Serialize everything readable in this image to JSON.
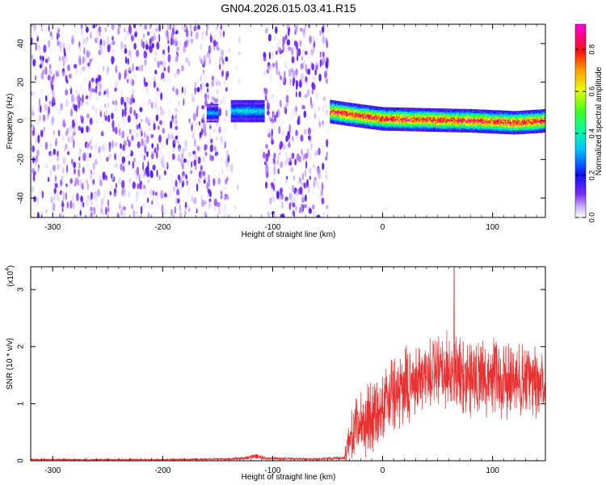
{
  "title": "GN04.2026.015.03.41.R15",
  "chart_data": [
    {
      "type": "heatmap",
      "xlabel": "Height of straight line (km)",
      "ylabel": "Frequency (Hz)",
      "xlim": [
        -320,
        148
      ],
      "ylim": [
        -50,
        50
      ],
      "xticks": [
        -300,
        -200,
        -100,
        0,
        100
      ],
      "xtick_labels": [
        "-300",
        "-200",
        "-100",
        "0",
        "100"
      ],
      "yticks": [
        -40,
        -20,
        0,
        20,
        40
      ],
      "ytick_labels": [
        "-40",
        "-20",
        "0",
        "20",
        "40"
      ],
      "colorbar": {
        "label": "Normalized spectral amplitude",
        "range": [
          0,
          0.92
        ],
        "ticks": [
          0,
          0.2,
          0.4,
          0.6,
          0.8
        ],
        "tick_labels": [
          "0.0",
          "0.2",
          "0.4",
          "0.6",
          "0.8"
        ],
        "colormap": "rainbow (white → violet → blue → cyan → green → yellow → orange → red → magenta)"
      },
      "regions": [
        {
          "x": [
            -320,
            -140
          ],
          "y": [
            -50,
            50
          ],
          "amplitude": [
            0.0,
            0.15
          ],
          "description": "broadband noise"
        },
        {
          "x": [
            -140,
            -125
          ],
          "y": [
            -50,
            50
          ],
          "amplitude": [
            0.0,
            0.05
          ],
          "description": "sparse noise"
        },
        {
          "x": [
            -108,
            -50
          ],
          "y": [
            -50,
            50
          ],
          "amplitude": [
            0.0,
            0.15
          ],
          "description": "broadband noise"
        },
        {
          "x": [
            -160,
            -150
          ],
          "y": [
            0,
            8
          ],
          "amplitude": [
            0.2,
            0.35
          ],
          "description": "weak tone"
        },
        {
          "x": [
            -138,
            -108
          ],
          "y": [
            0,
            10
          ],
          "amplitude": [
            0.2,
            0.4
          ],
          "description": "weak tone"
        },
        {
          "x": [
            -48,
            148
          ],
          "y": [
            -3,
            6
          ],
          "amplitude": [
            0.5,
            0.9
          ],
          "description": "strong tone near 0 Hz"
        }
      ],
      "tone_center_hz": {
        "x": [
          -45,
          -20,
          0,
          40,
          80,
          120,
          148
        ],
        "y": [
          4.5,
          2.5,
          1.0,
          0.5,
          0.0,
          -1.0,
          0.0
        ]
      },
      "grid": false,
      "legend": "colorbar right"
    },
    {
      "type": "line",
      "xlabel": "Height of straight line (km)",
      "ylabel": "SNR (10 * v/v)",
      "y_scale_label": "(x10",
      "y_scale_exponent": "4",
      "xlim": [
        -320,
        148
      ],
      "ylim": [
        0,
        3.4
      ],
      "xticks": [
        -300,
        -200,
        -100,
        0,
        100
      ],
      "xtick_labels": [
        "-300",
        "-200",
        "-100",
        "0",
        "100"
      ],
      "yticks": [
        0,
        1,
        2,
        3
      ],
      "ytick_labels": [
        "0",
        "1",
        "2",
        "3"
      ],
      "color": "#e83030",
      "series": [
        {
          "x": [
            -320,
            -200,
            -140,
            -125,
            -115,
            -105,
            -60,
            -35,
            -30,
            -25,
            -20,
            -10,
            0,
            20,
            40,
            60,
            80,
            100,
            120,
            148
          ],
          "y": [
            0.02,
            0.02,
            0.03,
            0.05,
            0.08,
            0.04,
            0.03,
            0.05,
            0.35,
            0.55,
            0.65,
            0.8,
            0.95,
            1.3,
            1.5,
            1.55,
            1.5,
            1.45,
            1.4,
            1.35
          ]
        }
      ],
      "noise_spread": 0.55,
      "max_peak": {
        "x": 65,
        "y": 3.4
      },
      "grid": false
    }
  ]
}
